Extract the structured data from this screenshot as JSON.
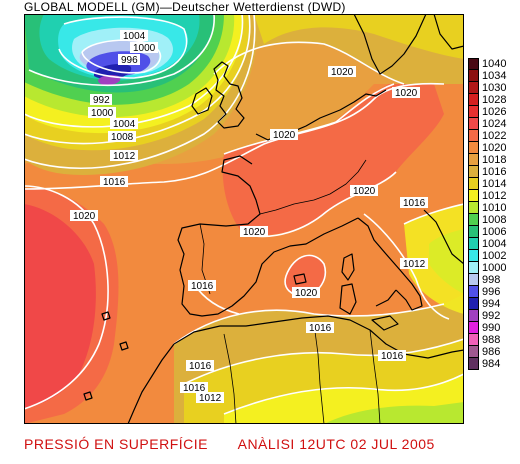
{
  "title": "GLOBAL MODELL (GM)—Deutscher Wetterdienst (DWD)",
  "footer": {
    "left": "PRESSIÓ EN SUPERFÍCIE",
    "right": "ANÀLISI 12UTC 02 JUL 2005"
  },
  "legend": [
    {
      "label": "1040",
      "color": "#4a0a14"
    },
    {
      "label": "1034",
      "color": "#8c1010"
    },
    {
      "label": "1030",
      "color": "#b01818"
    },
    {
      "label": "1028",
      "color": "#d42020"
    },
    {
      "label": "1026",
      "color": "#e83030"
    },
    {
      "label": "1024",
      "color": "#f04848"
    },
    {
      "label": "1022",
      "color": "#f46a46"
    },
    {
      "label": "1020",
      "color": "#f28a3e"
    },
    {
      "label": "1018",
      "color": "#e8a040"
    },
    {
      "label": "1016",
      "color": "#dcb03c"
    },
    {
      "label": "1014",
      "color": "#e8d020"
    },
    {
      "label": "1012",
      "color": "#f4f020"
    },
    {
      "label": "1010",
      "color": "#b8e830"
    },
    {
      "label": "1008",
      "color": "#50d050"
    },
    {
      "label": "1006",
      "color": "#28c078"
    },
    {
      "label": "1004",
      "color": "#20d0b0"
    },
    {
      "label": "1002",
      "color": "#38e8e8"
    },
    {
      "label": "1000",
      "color": "#a0f0f8"
    },
    {
      "label": "998",
      "color": "#b8c8f0"
    },
    {
      "label": "996",
      "color": "#5050e8"
    },
    {
      "label": "994",
      "color": "#2020b0"
    },
    {
      "label": "992",
      "color": "#a040c0"
    },
    {
      "label": "990",
      "color": "#e020e0"
    },
    {
      "label": "988",
      "color": "#f060b8"
    },
    {
      "label": "986",
      "color": "#a05890"
    },
    {
      "label": "984",
      "color": "#603060"
    }
  ],
  "isobar_labels": [
    {
      "text": "1004"
    },
    {
      "text": "1000"
    },
    {
      "text": "996"
    },
    {
      "text": "992"
    },
    {
      "text": "1000"
    },
    {
      "text": "1004"
    },
    {
      "text": "1008"
    },
    {
      "text": "1012"
    },
    {
      "text": "1016"
    },
    {
      "text": "1020"
    },
    {
      "text": "1020"
    },
    {
      "text": "1020"
    },
    {
      "text": "1020"
    },
    {
      "text": "1020"
    },
    {
      "text": "1020"
    },
    {
      "text": "1016"
    },
    {
      "text": "1016"
    },
    {
      "text": "1012"
    },
    {
      "text": "1020"
    },
    {
      "text": "1016"
    },
    {
      "text": "1016"
    },
    {
      "text": "1016"
    },
    {
      "text": "1016"
    },
    {
      "text": "1012"
    }
  ]
}
